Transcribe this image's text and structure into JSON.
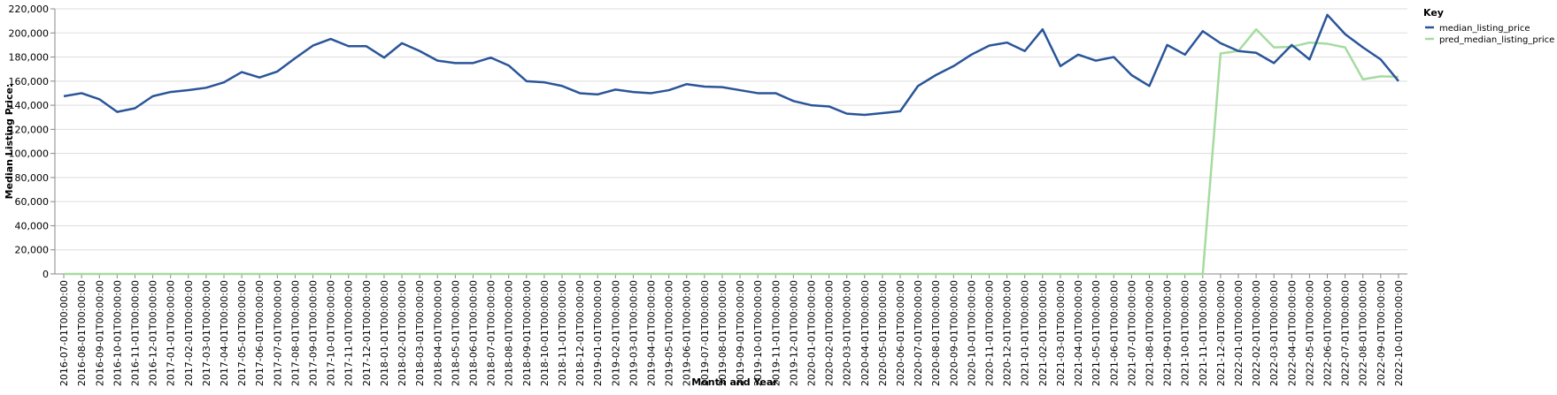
{
  "chart_data": {
    "type": "line",
    "x_label": "Month and Year",
    "y_label": "Median Listing Price:",
    "legend_title": "Key",
    "categories": [
      "2016-07-01T00:00:00",
      "2016-08-01T00:00:00",
      "2016-09-01T00:00:00",
      "2016-10-01T00:00:00",
      "2016-11-01T00:00:00",
      "2016-12-01T00:00:00",
      "2017-01-01T00:00:00",
      "2017-02-01T00:00:00",
      "2017-03-01T00:00:00",
      "2017-04-01T00:00:00",
      "2017-05-01T00:00:00",
      "2017-06-01T00:00:00",
      "2017-07-01T00:00:00",
      "2017-08-01T00:00:00",
      "2017-09-01T00:00:00",
      "2017-10-01T00:00:00",
      "2017-11-01T00:00:00",
      "2017-12-01T00:00:00",
      "2018-01-01T00:00:00",
      "2018-02-01T00:00:00",
      "2018-03-01T00:00:00",
      "2018-04-01T00:00:00",
      "2018-05-01T00:00:00",
      "2018-06-01T00:00:00",
      "2018-07-01T00:00:00",
      "2018-08-01T00:00:00",
      "2018-09-01T00:00:00",
      "2018-10-01T00:00:00",
      "2018-11-01T00:00:00",
      "2018-12-01T00:00:00",
      "2019-01-01T00:00:00",
      "2019-02-01T00:00:00",
      "2019-03-01T00:00:00",
      "2019-04-01T00:00:00",
      "2019-05-01T00:00:00",
      "2019-06-01T00:00:00",
      "2019-07-01T00:00:00",
      "2019-08-01T00:00:00",
      "2019-09-01T00:00:00",
      "2019-10-01T00:00:00",
      "2019-11-01T00:00:00",
      "2019-12-01T00:00:00",
      "2020-01-01T00:00:00",
      "2020-02-01T00:00:00",
      "2020-03-01T00:00:00",
      "2020-04-01T00:00:00",
      "2020-05-01T00:00:00",
      "2020-06-01T00:00:00",
      "2020-07-01T00:00:00",
      "2020-08-01T00:00:00",
      "2020-09-01T00:00:00",
      "2020-10-01T00:00:00",
      "2020-11-01T00:00:00",
      "2020-12-01T00:00:00",
      "2021-01-01T00:00:00",
      "2021-02-01T00:00:00",
      "2021-03-01T00:00:00",
      "2021-04-01T00:00:00",
      "2021-05-01T00:00:00",
      "2021-06-01T00:00:00",
      "2021-07-01T00:00:00",
      "2021-08-01T00:00:00",
      "2021-09-01T00:00:00",
      "2021-10-01T00:00:00",
      "2021-11-01T00:00:00",
      "2021-12-01T00:00:00",
      "2022-01-01T00:00:00",
      "2022-02-01T00:00:00",
      "2022-03-01T00:00:00",
      "2022-04-01T00:00:00",
      "2022-05-01T00:00:00",
      "2022-06-01T00:00:00",
      "2022-07-01T00:00:00",
      "2022-08-01T00:00:00",
      "2022-09-01T00:00:00",
      "2022-10-01T00:00:00"
    ],
    "series": [
      {
        "name": "median_listing_price",
        "color": "#2a5599",
        "values": [
          147500,
          150000,
          145000,
          134500,
          137500,
          147500,
          151000,
          152500,
          154500,
          159000,
          167500,
          163000,
          168000,
          179000,
          189500,
          195000,
          189000,
          189000,
          179500,
          191500,
          185000,
          177000,
          175000,
          175000,
          179500,
          173000,
          160000,
          159000,
          156000,
          150000,
          149000,
          153000,
          151000,
          150000,
          152500,
          157500,
          155500,
          155000,
          152500,
          150000,
          150000,
          143500,
          140000,
          139000,
          133000,
          132000,
          133500,
          135000,
          156000,
          165000,
          172500,
          182000,
          189500,
          192000,
          185000,
          203000,
          172500,
          182000,
          177000,
          180000,
          165000,
          156000,
          190000,
          182000,
          201500,
          191500,
          185000,
          183500,
          175000,
          190000,
          178000,
          215000,
          199000,
          188000,
          178000,
          160000
        ]
      },
      {
        "name": "pred_median_listing_price",
        "color": "#a6dba0",
        "values": [
          0,
          0,
          0,
          0,
          0,
          0,
          0,
          0,
          0,
          0,
          0,
          0,
          0,
          0,
          0,
          0,
          0,
          0,
          0,
          0,
          0,
          0,
          0,
          0,
          0,
          0,
          0,
          0,
          0,
          0,
          0,
          0,
          0,
          0,
          0,
          0,
          0,
          0,
          0,
          0,
          0,
          0,
          0,
          0,
          0,
          0,
          0,
          0,
          0,
          0,
          0,
          0,
          0,
          0,
          0,
          0,
          0,
          0,
          0,
          0,
          0,
          0,
          0,
          0,
          0,
          183000,
          185000,
          203000,
          188000,
          188500,
          192000,
          191000,
          188000,
          161500,
          164000,
          163500
        ]
      }
    ],
    "ylim": [
      0,
      220000
    ],
    "yticks": [
      0,
      {
        "value": 20000,
        "label": "20,000"
      },
      {
        "value": 40000,
        "label": "40,000"
      },
      {
        "value": 60000,
        "label": "60,000"
      },
      {
        "value": 80000,
        "label": "80,000"
      },
      {
        "value": 100000,
        "label": "100,000"
      },
      {
        "value": 120000,
        "label": "120,000"
      },
      {
        "value": 140000,
        "label": "140,000"
      },
      {
        "value": 160000,
        "label": "160,000"
      },
      {
        "value": 180000,
        "label": "180,000"
      },
      {
        "value": 200000,
        "label": "200,000"
      },
      {
        "value": 220000,
        "label": "220,000"
      }
    ],
    "grid": true
  }
}
